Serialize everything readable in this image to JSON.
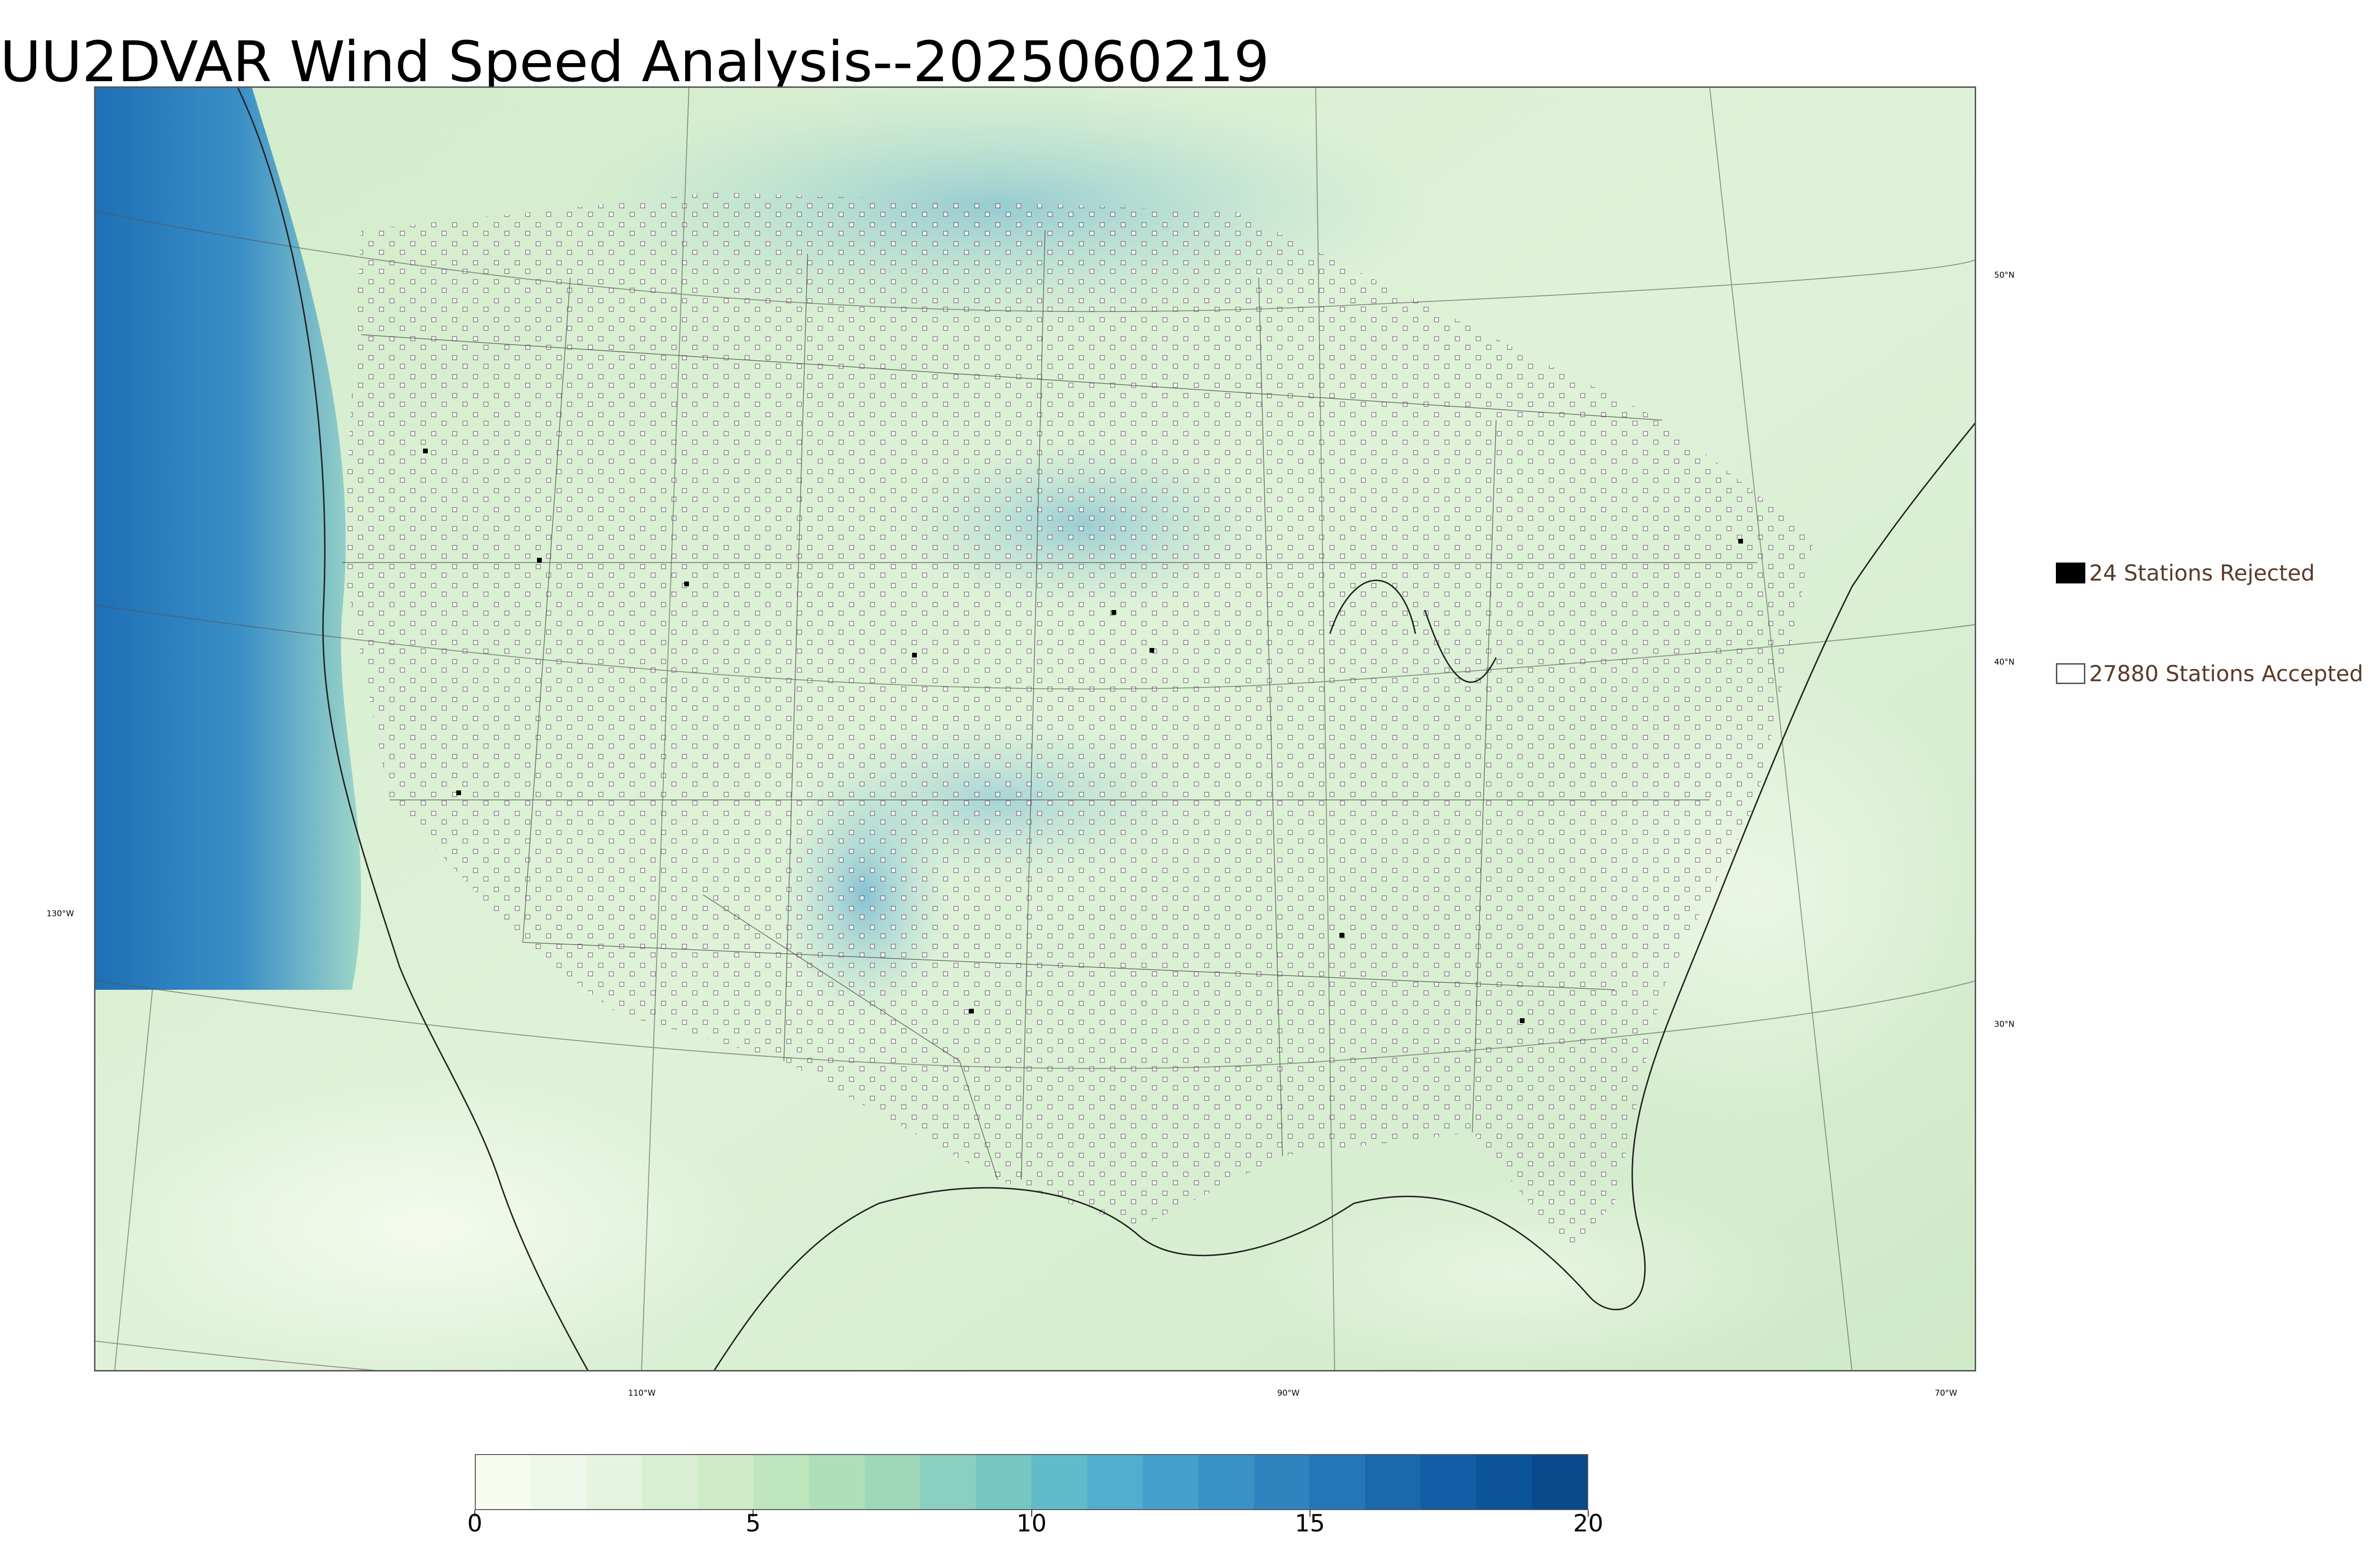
{
  "title": "UU2DVAR Wind Speed Analysis--2025060219",
  "map": {
    "longitude_labels": [
      "130°W",
      "110°W",
      "90°W",
      "70°W"
    ],
    "latitude_labels": [
      "50°N",
      "40°N",
      "30°N"
    ],
    "colors": {
      "ocean_strong": "#1f6fb5",
      "ocean_mid": "#4aa3cf",
      "land_base": "#d6efd0",
      "land_light": "#eef8ea",
      "land_blue": "#8ccbd6"
    }
  },
  "legend": {
    "rejected_label": "24 Stations Rejected",
    "accepted_label": "27880 Stations Accepted",
    "rejected_color": "#000000",
    "accepted_color": "#ffffff"
  },
  "colorbar": {
    "min": 0,
    "max": 20,
    "tick_labels": [
      "0",
      "5",
      "10",
      "15",
      "20"
    ],
    "colors": [
      "#f7fcf0",
      "#eef8ea",
      "#e4f4de",
      "#d8efd2",
      "#cdebc5",
      "#bfe5bd",
      "#afdfb9",
      "#9ed8bb",
      "#8ad0be",
      "#76c6c3",
      "#62bbc9",
      "#51aece",
      "#459fcb",
      "#3a91c5",
      "#3083bf",
      "#2576b7",
      "#1b69ad",
      "#125ea5",
      "#0b5499",
      "#084a8c"
    ]
  }
}
